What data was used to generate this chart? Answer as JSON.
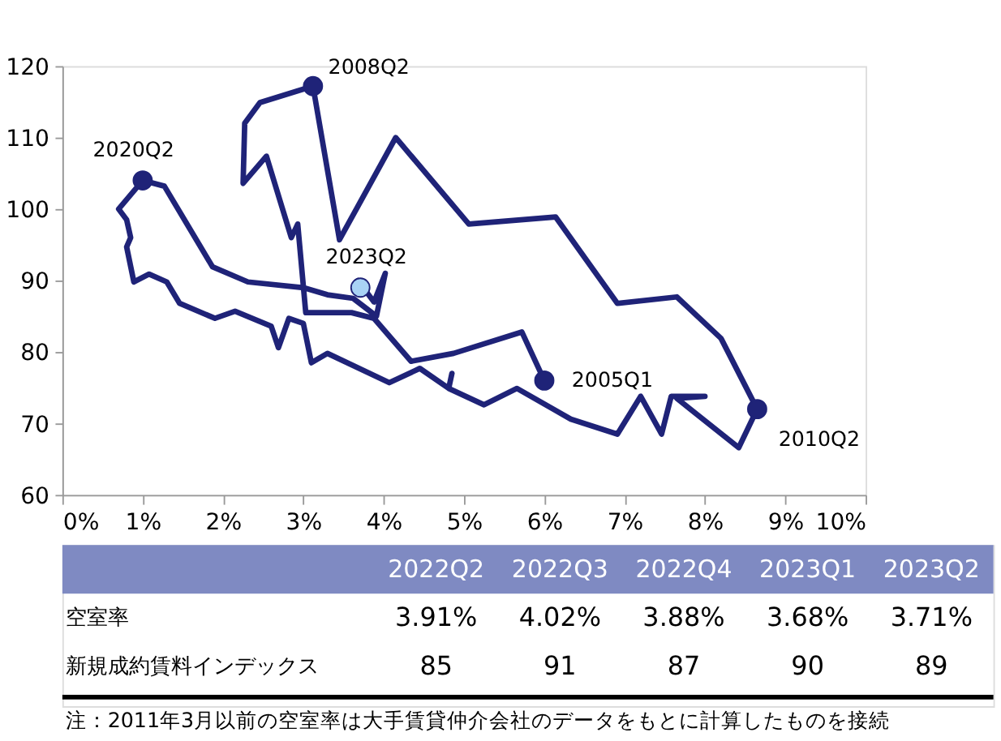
{
  "chart_data": [
    {
      "type": "line",
      "xlim": [
        0,
        10
      ],
      "xticks": [
        {
          "value": 0,
          "label": "0%"
        },
        {
          "value": 1,
          "label": "1%"
        },
        {
          "value": 2,
          "label": "2%"
        },
        {
          "value": 3,
          "label": "3%"
        },
        {
          "value": 4,
          "label": "4%"
        },
        {
          "value": 5,
          "label": "5%"
        },
        {
          "value": 6,
          "label": "6%"
        },
        {
          "value": 7,
          "label": "7%"
        },
        {
          "value": 8,
          "label": "8%"
        },
        {
          "value": 9,
          "label": "9%"
        },
        {
          "value": 10,
          "label": "10%"
        }
      ],
      "ylim": [
        60,
        120
      ],
      "yticks": [
        60,
        70,
        80,
        90,
        100,
        110,
        120
      ],
      "grid": false,
      "line_style": "solid",
      "series": [
        {
          "type": "line",
          "marker": "none",
          "color": "#1f2378",
          "x": [
            6.0,
            5.72,
            4.87,
            4.34,
            3.88,
            3.6,
            3.41,
            3.03,
            2.93,
            2.85,
            2.54,
            2.25,
            2.27,
            2.46,
            3.12,
            3.45,
            4.15,
            5.06,
            6.14,
            6.91,
            7.65,
            8.2,
            8.65,
            8.42,
            7.65,
            8.0,
            7.58,
            7.46,
            7.2,
            6.91,
            6.33,
            5.66,
            5.25,
            4.81,
            4.85,
            4.81,
            4.45,
            4.07,
            3.3,
            3.1,
            3.0,
            2.82,
            2.69,
            2.6,
            2.15,
            1.9,
            1.46,
            1.3,
            1.08,
            0.89,
            0.8,
            0.85,
            0.8,
            0.7,
            1.0,
            1.27,
            1.87,
            2.31,
            3.0,
            3.3,
            3.62,
            3.91,
            4.02,
            3.88,
            3.68,
            3.71
          ],
          "values": [
            76,
            82.8,
            79.8,
            78.7,
            84.7,
            85.5,
            85.5,
            85.5,
            97.9,
            96,
            107.4,
            103.6,
            112,
            114.9,
            117.2,
            95.7,
            110,
            97.9,
            98.9,
            86.8,
            87.7,
            81.9,
            72,
            66.6,
            73.5,
            73.8,
            73.8,
            68.5,
            73.8,
            68.5,
            70.6,
            74.9,
            72.6,
            74.9,
            77,
            74.9,
            77.7,
            75.7,
            79.8,
            78.5,
            84,
            84.7,
            80.6,
            83.6,
            85.7,
            84.7,
            86.8,
            89.8,
            90.9,
            89.8,
            94.7,
            96,
            98.5,
            100,
            104,
            103.2,
            91.9,
            89.8,
            89,
            88,
            87.5,
            85,
            91,
            87,
            90,
            89
          ]
        },
        {
          "type": "scatter",
          "marker": "circle",
          "x": [
            6.0,
            3.12,
            8.65,
            1.0,
            3.71
          ],
          "values": [
            76,
            117.2,
            72,
            104,
            89
          ],
          "colors": [
            "#1f2378",
            "#1f2378",
            "#1f2378",
            "#1f2378",
            "#a9d3f5"
          ]
        }
      ],
      "annotations": [
        {
          "text": "2005Q1",
          "x": 6.0,
          "y": 76
        },
        {
          "text": "2008Q2",
          "x": 3.12,
          "y": 117.2
        },
        {
          "text": "2010Q2",
          "x": 8.65,
          "y": 72
        },
        {
          "text": "2020Q2",
          "x": 1.0,
          "y": 104
        },
        {
          "text": "2023Q2",
          "x": 3.71,
          "y": 89
        }
      ]
    },
    {
      "type": "other",
      "categories": [
        "2022Q2",
        "2022Q3",
        "2022Q4",
        "2023Q1",
        "2023Q2"
      ],
      "series": [
        {
          "name": "空室率",
          "values": [
            3.91,
            4.02,
            3.88,
            3.68,
            3.71
          ],
          "value_labels": [
            "3.91%",
            "4.02%",
            "3.88%",
            "3.68%",
            "3.71%"
          ]
        },
        {
          "name": "新規成約賃料インデックス",
          "values": [
            85,
            91,
            87,
            90,
            89
          ],
          "value_labels": [
            "85",
            "91",
            "87",
            "90",
            "89"
          ]
        }
      ],
      "annotations": [
        "注：2011年3月以前の空室率は大手賃貸仲介会社のデータをもとに計算したものを接続"
      ]
    }
  ]
}
